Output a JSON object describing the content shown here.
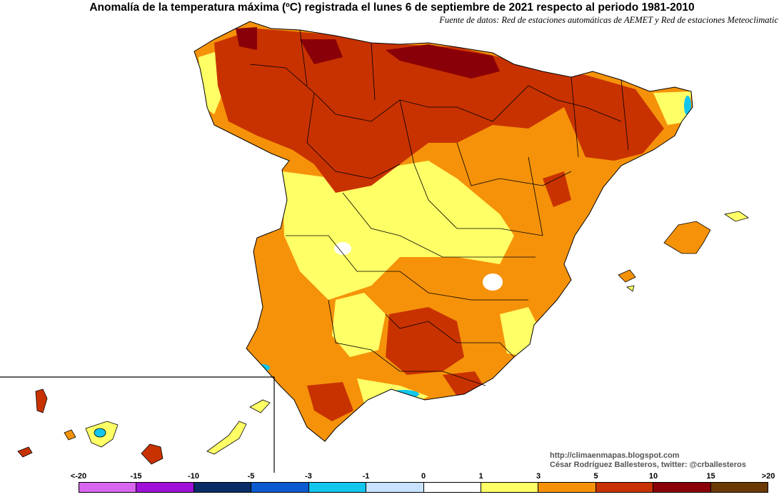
{
  "title": "Anomalía de la temperatura máxima (ºC) registrada el lunes 6 de septiembre de 2021 respecto al periodo 1981-2010",
  "subtitle": "Fuente de datos: Red de estaciones automáticas de AEMET y Red de estaciones Meteoclimatic",
  "credits": {
    "url": "http://climaenmapas.blogspot.com",
    "author": "César Rodríguez Ballesteros, twitter: @crballesteros"
  },
  "legend": {
    "ticks": [
      "<-20",
      "-15",
      "-10",
      "-5",
      "-3",
      "-1",
      "0",
      "1",
      "3",
      "5",
      "10",
      "15",
      ">20"
    ],
    "colors": [
      "#d966ee",
      "#a010d8",
      "#0a2c66",
      "#0a5ad0",
      "#12c6ee",
      "#c8e2ff",
      "#ffffff",
      "#ffff66",
      "#f5920a",
      "#c83200",
      "#8a0008",
      "#6b3a04"
    ]
  },
  "colors": {
    "very_hot": "#8a0008",
    "hot": "#c83200",
    "warm": "#f5920a",
    "mild": "#ffff66",
    "neutral": "#ffffff",
    "cool": "#12c6ee",
    "border": "#000000"
  }
}
